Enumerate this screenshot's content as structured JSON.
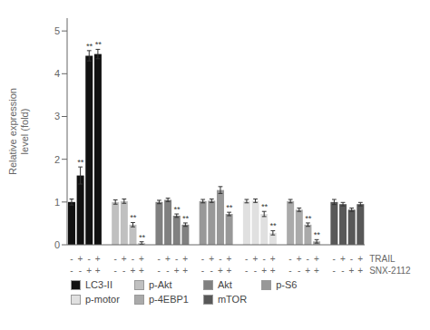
{
  "chart_data": {
    "type": "bar",
    "ylabel": "Relative expression\nlevel (fold)",
    "ylim": [
      0,
      5.3
    ],
    "yticks": [
      0,
      1,
      2,
      3,
      4,
      5
    ],
    "grid": false,
    "legend": "bottom",
    "x_rows": [
      {
        "label": "TRAIL",
        "signs": [
          "-",
          "+",
          "-",
          "+"
        ]
      },
      {
        "label": "SNX-2112",
        "signs": [
          "-",
          "-",
          "+",
          "+"
        ]
      }
    ],
    "series": [
      {
        "name": "LC3-II",
        "color": "#111111",
        "values": [
          1.0,
          1.62,
          4.42,
          4.46
        ],
        "errors": [
          0.07,
          0.2,
          0.12,
          0.11
        ],
        "annotations": [
          null,
          "**",
          "**",
          "**"
        ]
      },
      {
        "name": "p-Akt",
        "color": "#c0c0c0",
        "values": [
          1.0,
          1.02,
          0.47,
          0.04
        ],
        "errors": [
          0.05,
          0.05,
          0.05,
          0.03
        ],
        "annotations": [
          null,
          null,
          "**",
          "**"
        ]
      },
      {
        "name": "Akt",
        "color": "#808080",
        "values": [
          1.0,
          1.05,
          0.68,
          0.47
        ],
        "errors": [
          0.04,
          0.04,
          0.04,
          0.04
        ],
        "annotations": [
          null,
          null,
          "**",
          "**"
        ]
      },
      {
        "name": "p-S6",
        "color": "#989898",
        "values": [
          1.02,
          1.03,
          1.28,
          0.72
        ],
        "errors": [
          0.04,
          0.04,
          0.08,
          0.04
        ],
        "annotations": [
          null,
          null,
          null,
          "**"
        ]
      },
      {
        "name": "p-motor",
        "color": "#e0e0e0",
        "values": [
          1.02,
          1.03,
          0.72,
          0.28
        ],
        "errors": [
          0.04,
          0.04,
          0.06,
          0.05
        ],
        "annotations": [
          null,
          null,
          "**",
          "**"
        ]
      },
      {
        "name": "p-4EBP1",
        "color": "#aaaaaa",
        "values": [
          1.02,
          0.82,
          0.47,
          0.08
        ],
        "errors": [
          0.04,
          0.04,
          0.04,
          0.04
        ],
        "annotations": [
          null,
          null,
          "**",
          "**"
        ]
      },
      {
        "name": "mTOR",
        "color": "#585858",
        "values": [
          1.0,
          0.95,
          0.82,
          0.95
        ],
        "errors": [
          0.06,
          0.04,
          0.04,
          0.04
        ],
        "annotations": [
          null,
          null,
          null,
          null
        ]
      }
    ]
  }
}
